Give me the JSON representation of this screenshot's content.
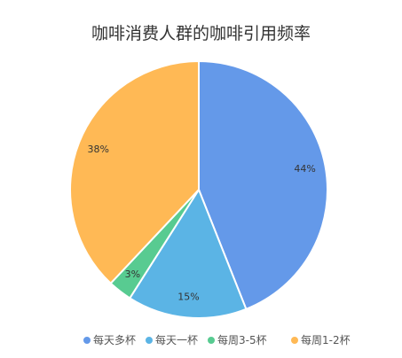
{
  "chart_data": {
    "type": "pie",
    "title": "咖啡消费人群的咖啡引用频率",
    "categories": [
      "每天多杯",
      "每天一杯",
      "每周3-5杯",
      "每周1-2杯"
    ],
    "values": [
      44,
      15,
      3,
      38
    ],
    "labels": [
      "44%",
      "15%",
      "3%",
      "38%"
    ],
    "colors": [
      "#6499E9",
      "#5BB4E5",
      "#58CB91",
      "#FFB955"
    ],
    "legend": {
      "placement": "bottom"
    }
  }
}
